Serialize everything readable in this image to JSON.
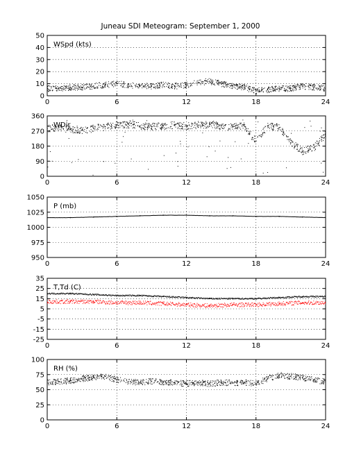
{
  "title": "Juneau SDI Meteogram: September  1, 2000",
  "chart_data": [
    {
      "type": "scatter",
      "label": "WSpd (kts)",
      "ylim": [
        0,
        50
      ],
      "yticks": [
        0,
        10,
        20,
        30,
        40,
        50
      ],
      "xlim": [
        0,
        24
      ],
      "xticks": [
        0,
        6,
        12,
        18,
        24
      ],
      "grid": true,
      "series": [
        {
          "color": "#000000",
          "x": [
            0,
            1,
            2,
            3,
            4,
            5,
            6,
            7,
            8,
            9,
            10,
            11,
            12,
            13,
            14,
            15,
            16,
            17,
            18,
            19,
            20,
            21,
            22,
            23,
            24
          ],
          "y": [
            6,
            6,
            7,
            7,
            8,
            9,
            10,
            9,
            8,
            8,
            9,
            8,
            9,
            11,
            12,
            10,
            8,
            7,
            4,
            5,
            6,
            6,
            8,
            7,
            6
          ]
        }
      ]
    },
    {
      "type": "scatter",
      "label": "WDir",
      "ylim": [
        0,
        360
      ],
      "yticks": [
        0,
        90,
        180,
        270,
        360
      ],
      "xlim": [
        0,
        24
      ],
      "xticks": [
        0,
        6,
        12,
        18,
        24
      ],
      "grid": true,
      "series": [
        {
          "color": "#000000",
          "x": [
            0,
            1,
            2,
            3,
            4,
            5,
            6,
            7,
            8,
            9,
            10,
            11,
            12,
            13,
            14,
            15,
            16,
            17,
            18,
            19,
            20,
            21,
            22,
            23,
            24
          ],
          "y": [
            285,
            290,
            280,
            275,
            285,
            295,
            305,
            310,
            300,
            295,
            300,
            305,
            300,
            305,
            310,
            300,
            295,
            300,
            210,
            300,
            290,
            200,
            150,
            170,
            250
          ]
        }
      ]
    },
    {
      "type": "line",
      "label": "P (mb)",
      "ylim": [
        950,
        1050
      ],
      "yticks": [
        950,
        975,
        1000,
        1025,
        1050
      ],
      "xlim": [
        0,
        24
      ],
      "xticks": [
        0,
        6,
        12,
        18,
        24
      ],
      "grid": true,
      "series": [
        {
          "color": "#000000",
          "x": [
            0,
            2,
            4,
            6,
            8,
            10,
            12,
            14,
            16,
            18,
            20,
            22,
            24
          ],
          "y": [
            1016,
            1016,
            1017,
            1018,
            1019,
            1020,
            1020,
            1019,
            1019,
            1018,
            1018,
            1017,
            1016
          ]
        }
      ]
    },
    {
      "type": "line",
      "label": "T,Td (C)",
      "ylim": [
        -25,
        35
      ],
      "yticks": [
        -25,
        -15,
        -5,
        5,
        15,
        25,
        35
      ],
      "xlim": [
        0,
        24
      ],
      "xticks": [
        0,
        6,
        12,
        18,
        24
      ],
      "grid": true,
      "series": [
        {
          "color": "#000000",
          "x": [
            0,
            2,
            4,
            6,
            8,
            10,
            12,
            14,
            16,
            18,
            20,
            22,
            24
          ],
          "y": [
            20,
            20,
            19,
            18,
            18,
            17,
            16,
            15,
            15,
            15,
            16,
            17,
            17
          ]
        },
        {
          "color": "#ff0000",
          "x": [
            0,
            2,
            4,
            6,
            8,
            10,
            12,
            14,
            16,
            18,
            20,
            22,
            24
          ],
          "y": [
            12,
            12,
            12,
            11,
            11,
            10,
            9,
            8,
            9,
            9,
            10,
            11,
            11
          ]
        }
      ]
    },
    {
      "type": "scatter",
      "label": "RH (%)",
      "ylim": [
        0,
        100
      ],
      "yticks": [
        0,
        25,
        50,
        75,
        100
      ],
      "xlim": [
        0,
        24
      ],
      "xticks": [
        0,
        6,
        12,
        18,
        24
      ],
      "grid": true,
      "series": [
        {
          "color": "#000000",
          "x": [
            0,
            1,
            2,
            3,
            4,
            5,
            6,
            7,
            8,
            9,
            10,
            11,
            12,
            13,
            14,
            15,
            16,
            17,
            18,
            19,
            20,
            21,
            22,
            23,
            24
          ],
          "y": [
            62,
            63,
            65,
            68,
            70,
            72,
            66,
            63,
            62,
            64,
            63,
            62,
            60,
            61,
            60,
            62,
            61,
            62,
            60,
            68,
            74,
            72,
            70,
            66,
            63
          ]
        }
      ]
    }
  ]
}
